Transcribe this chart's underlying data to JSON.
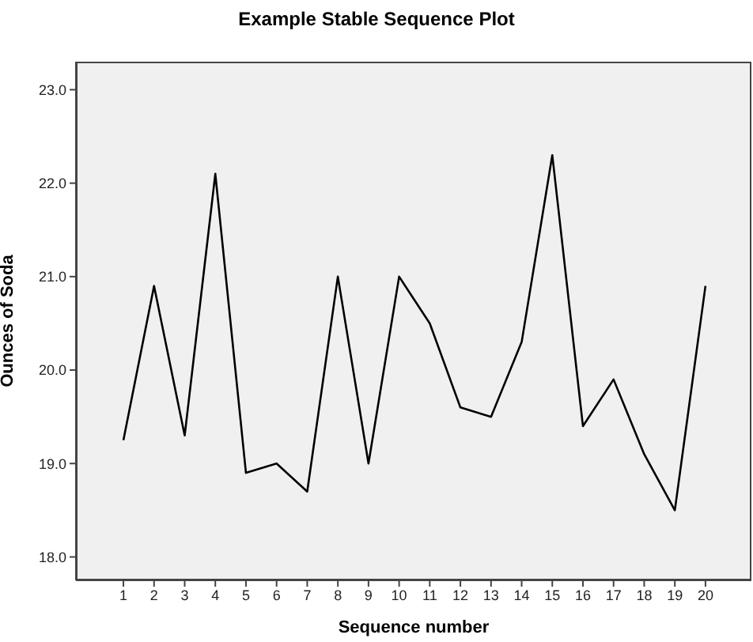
{
  "chart_data": {
    "type": "line",
    "title": "Example Stable Sequence Plot",
    "xlabel": "Sequence number",
    "ylabel": "Ounces of Soda",
    "x": [
      1,
      2,
      3,
      4,
      5,
      6,
      7,
      8,
      9,
      10,
      11,
      12,
      13,
      14,
      15,
      16,
      17,
      18,
      19,
      20
    ],
    "series": [
      {
        "color": "#000000",
        "values": [
          19.25,
          20.9,
          19.3,
          22.1,
          18.9,
          19.0,
          18.7,
          21.0,
          19.0,
          21.0,
          20.5,
          19.6,
          19.5,
          20.3,
          22.3,
          19.4,
          19.9,
          19.1,
          18.5,
          20.9
        ]
      }
    ],
    "xlim": [
      -0.55,
      21.5
    ],
    "xticks": [
      1,
      2,
      3,
      4,
      5,
      6,
      7,
      8,
      9,
      10,
      11,
      12,
      13,
      14,
      15,
      16,
      17,
      18,
      19,
      20
    ],
    "ylim": [
      17.75,
      23.3
    ],
    "yticks": [
      {
        "value": 18,
        "label": "18.0"
      },
      {
        "value": 19,
        "label": "19.0"
      },
      {
        "value": 20,
        "label": "20.0"
      },
      {
        "value": 21,
        "label": "21.0"
      },
      {
        "value": 22,
        "label": "22.0"
      },
      {
        "value": 23,
        "label": "23.0"
      }
    ],
    "grid": false,
    "marker": "none",
    "line_style": "solid"
  }
}
